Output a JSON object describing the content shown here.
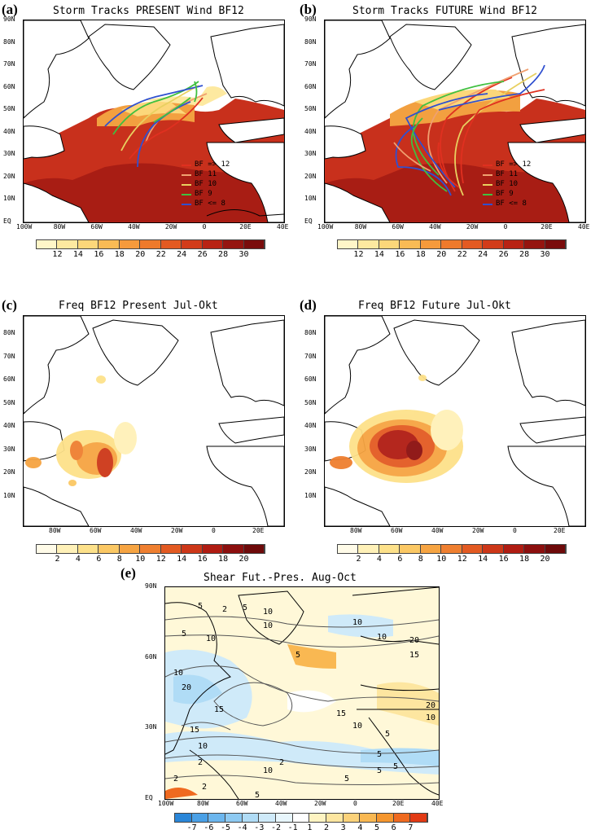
{
  "panels": {
    "a": {
      "label": "(a)",
      "title": "Storm Tracks PRESENT Wind BF12"
    },
    "b": {
      "label": "(b)",
      "title": "Storm Tracks FUTURE Wind BF12"
    },
    "c": {
      "label": "(c)",
      "title": "Freq BF12 Present Jul-Okt"
    },
    "d": {
      "label": "(d)",
      "title": "Freq BF12 Future Jul-Okt"
    },
    "e": {
      "label": "(e)",
      "title": "Shear Fut.-Pres. Aug-Oct"
    }
  },
  "lat_ticks_top": [
    "90N",
    "80N",
    "70N",
    "60N",
    "50N",
    "40N",
    "30N",
    "20N",
    "10N",
    "EQ"
  ],
  "lon_ticks_top": [
    "100W",
    "80W",
    "60W",
    "40W",
    "20W",
    "0",
    "20E",
    "40E"
  ],
  "lat_ticks_mid": [
    "80N",
    "70N",
    "60N",
    "50N",
    "40N",
    "30N",
    "20N",
    "10N"
  ],
  "lon_ticks_mid": [
    "80W",
    "60W",
    "40W",
    "20W",
    "0",
    "20E"
  ],
  "lat_ticks_e": [
    "90N",
    "60N",
    "30N",
    "EQ"
  ],
  "lon_ticks_e": [
    "100W",
    "80W",
    "60W",
    "40W",
    "20W",
    "0",
    "20E",
    "40E"
  ],
  "legend": [
    {
      "label": "BF => 12",
      "color": "#e03020"
    },
    {
      "label": "BF 11",
      "color": "#f0a070"
    },
    {
      "label": "BF 10",
      "color": "#e8d060"
    },
    {
      "label": "BF  9",
      "color": "#40c040"
    },
    {
      "label": "BF <=  8",
      "color": "#3050d0"
    }
  ],
  "colorbar_wind": {
    "labels": [
      "12",
      "14",
      "16",
      "18",
      "20",
      "22",
      "24",
      "26",
      "28",
      "30"
    ],
    "colors": [
      "#fff6c8",
      "#fde9a0",
      "#fcd77a",
      "#f9bb55",
      "#f59a3c",
      "#ee7a2c",
      "#e35a22",
      "#d23c1a",
      "#b82314",
      "#951510",
      "#7a0c0c"
    ]
  },
  "colorbar_freq": {
    "labels": [
      "2",
      "4",
      "6",
      "8",
      "10",
      "12",
      "14",
      "16",
      "18",
      "20"
    ],
    "colors": [
      "#fffbe8",
      "#fff1b8",
      "#fde18a",
      "#fbc864",
      "#f6a442",
      "#ef7f30",
      "#e35a22",
      "#cd3718",
      "#b01c12",
      "#8c0f0e",
      "#6e0a0a"
    ]
  },
  "colorbar_shear": {
    "labels": [
      "-7",
      "-6",
      "-5",
      "-4",
      "-3",
      "-2",
      "-1",
      "1",
      "2",
      "3",
      "4",
      "5",
      "6",
      "7"
    ],
    "colors": [
      "#2a86d8",
      "#4aa0e6",
      "#6cb6ee",
      "#8ecaf2",
      "#b0dcf6",
      "#cfeaf9",
      "#e8f6fc",
      "#ffffff",
      "#fff4c2",
      "#fde6a0",
      "#fbd27a",
      "#f9b852",
      "#f5962e",
      "#ef6a20",
      "#e23a14"
    ]
  },
  "contour_labels_e": [
    "5",
    "2",
    "10",
    "5",
    "10",
    "10",
    "5",
    "10",
    "5",
    "10",
    "15",
    "20",
    "10",
    "20",
    "15",
    "10",
    "15",
    "10",
    "5",
    "2",
    "15",
    "10",
    "2",
    "5",
    "5",
    "2",
    "10",
    "5",
    "20",
    "2",
    "5",
    "5"
  ]
}
